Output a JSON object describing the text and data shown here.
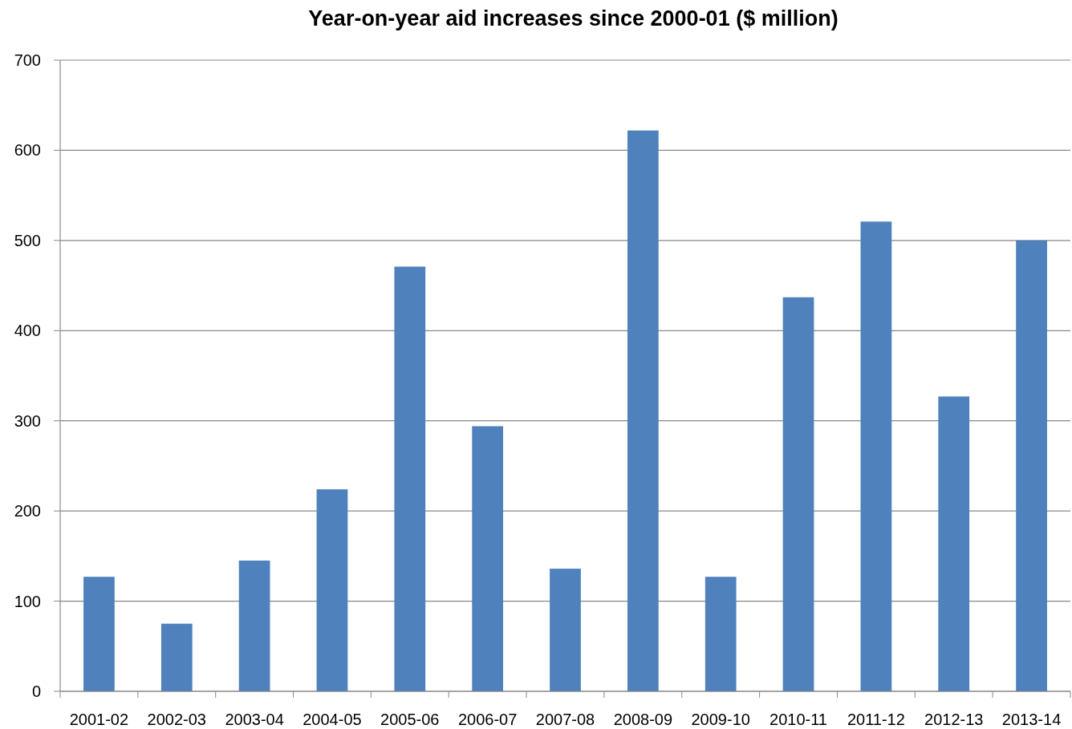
{
  "chart_data": {
    "type": "bar",
    "title": "Year-on-year aid increases since 2000-01 ($ million)",
    "categories": [
      "2001-02",
      "2002-03",
      "2003-04",
      "2004-05",
      "2005-06",
      "2006-07",
      "2007-08",
      "2008-09",
      "2009-10",
      "2010-11",
      "2011-12",
      "2012-13",
      "2013-14"
    ],
    "values": [
      127,
      75,
      145,
      224,
      471,
      294,
      136,
      622,
      127,
      437,
      521,
      327,
      500
    ],
    "color": "#4f81bd",
    "ylim": [
      0,
      700
    ],
    "yticks": [
      0,
      100,
      200,
      300,
      400,
      500,
      600,
      700
    ],
    "grid": "y"
  }
}
